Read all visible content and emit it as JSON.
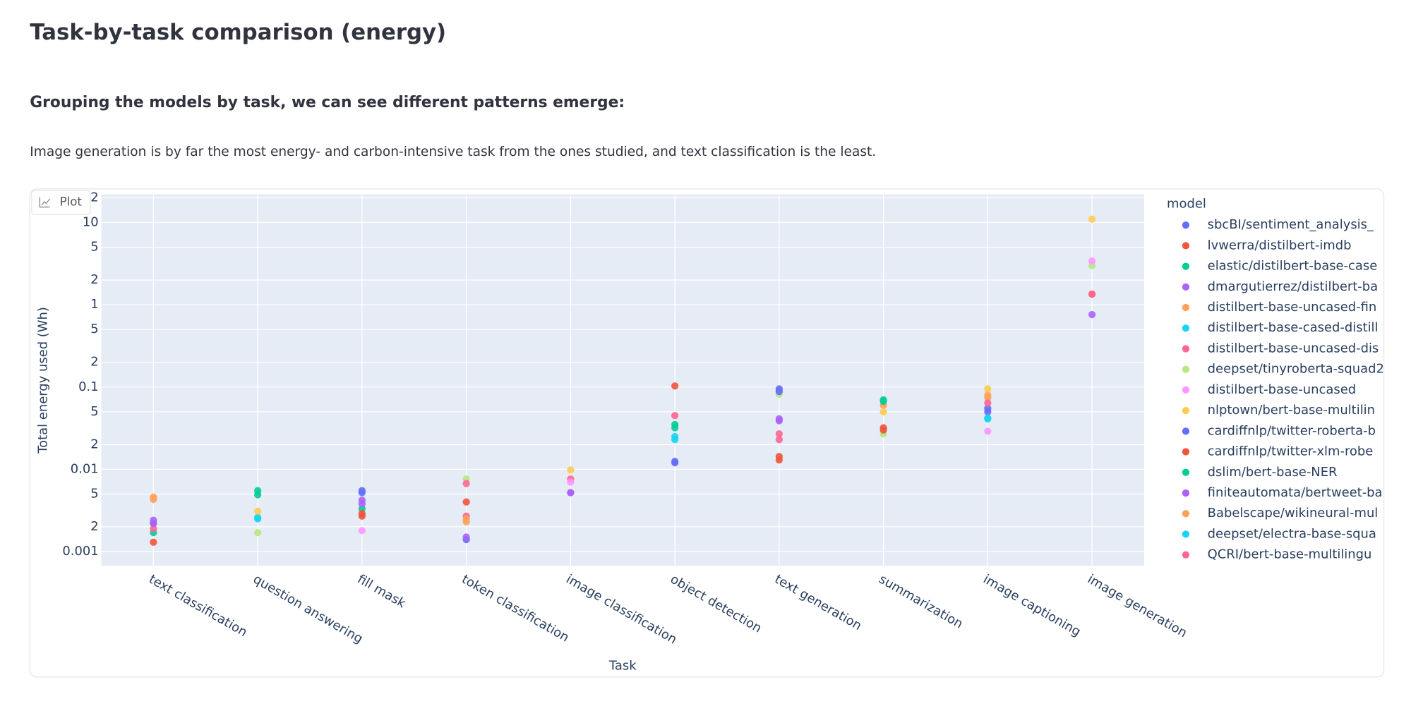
{
  "page": {
    "title": "Task-by-task comparison (energy)",
    "subtitle": "Grouping the models by task, we can see different patterns emerge:",
    "paragraph": "Image generation is by far the most energy- and carbon-intensive task from the ones studied, and text classification is the least.",
    "toolbar_button": "Plot"
  },
  "chart_data": {
    "type": "scatter",
    "log_y": true,
    "grid": true,
    "xlabel": "Task",
    "ylabel": "Total energy used (Wh)",
    "legend_title": "model",
    "legend": "right",
    "categories": [
      "text classification",
      "question answering",
      "fill mask",
      "token classification",
      "image classification",
      "object detection",
      "text generation",
      "summarization",
      "image captioning",
      "image generation"
    ],
    "ylim": [
      0.00067,
      22
    ],
    "yticks": [
      0.001,
      {
        "value": 0.002,
        "label": "2"
      },
      {
        "value": 0.005,
        "label": "5"
      },
      0.01,
      {
        "value": 0.02,
        "label": "2"
      },
      {
        "value": 0.05,
        "label": "5"
      },
      0.1,
      {
        "value": 0.2,
        "label": "2"
      },
      {
        "value": 0.5,
        "label": "5"
      },
      1,
      {
        "value": 2,
        "label": "2"
      },
      {
        "value": 5,
        "label": "5"
      },
      10,
      {
        "value": 20,
        "label": "2"
      }
    ],
    "series": [
      {
        "name": "sbcBI/sentiment_analysis_",
        "color": "#636efa",
        "values": [
          0.0022,
          null,
          0.0055,
          0.0014,
          null,
          0.0125,
          0.095,
          null,
          0.05,
          null
        ]
      },
      {
        "name": "lvwerra/distilbert-imdb",
        "color": "#EF553B",
        "values": [
          0.0013,
          null,
          0.0027,
          null,
          null,
          0.103,
          0.0143,
          0.032,
          null,
          1.35
        ]
      },
      {
        "name": "elastic/distilbert-base-case",
        "color": "#00cc96",
        "values": [
          0.0017,
          0.0055,
          0.0033,
          null,
          null,
          0.032,
          null,
          0.07,
          null,
          null
        ]
      },
      {
        "name": "dmargutierrez/distilbert-ba",
        "color": "#ab63fa",
        "values": [
          0.0024,
          null,
          0.0042,
          0.0015,
          0.0052,
          null,
          0.039,
          null,
          null,
          0.76
        ]
      },
      {
        "name": "distilbert-base-uncased-fin",
        "color": "#FFA15A",
        "values": [
          0.0046,
          null,
          null,
          0.0023,
          null,
          null,
          null,
          0.06,
          0.08,
          null
        ]
      },
      {
        "name": "distilbert-base-cased-distill",
        "color": "#19d3f3",
        "values": [
          null,
          0.0026,
          null,
          null,
          null,
          0.025,
          null,
          null,
          0.042,
          null
        ]
      },
      {
        "name": "distilbert-base-uncased-dis",
        "color": "#FF6692",
        "values": [
          0.0019,
          null,
          null,
          0.0027,
          0.0076,
          0.045,
          0.027,
          null,
          null,
          1.35
        ]
      },
      {
        "name": "deepset/tinyroberta-squad2",
        "color": "#B6E880",
        "values": [
          null,
          0.0017,
          null,
          0.0076,
          null,
          null,
          0.082,
          0.027,
          null,
          3.0
        ]
      },
      {
        "name": "distilbert-base-uncased",
        "color": "#FF97FF",
        "values": [
          null,
          null,
          0.0018,
          null,
          0.007,
          null,
          null,
          null,
          0.029,
          3.4
        ]
      },
      {
        "name": "nlptown/bert-base-multilin",
        "color": "#FECB52",
        "values": [
          null,
          0.0031,
          null,
          null,
          0.0098,
          null,
          null,
          0.05,
          0.095,
          11.0
        ]
      },
      {
        "name": "cardiffnlp/twitter-roberta-b",
        "color": "#636efa",
        "values": [
          null,
          null,
          0.0052,
          null,
          null,
          0.012,
          0.088,
          null,
          0.055,
          null
        ]
      },
      {
        "name": "cardiffnlp/twitter-xlm-robe",
        "color": "#EF553B",
        "values": [
          null,
          null,
          0.0029,
          0.004,
          null,
          null,
          0.013,
          0.03,
          null,
          null
        ]
      },
      {
        "name": "dslim/bert-base-NER",
        "color": "#00cc96",
        "values": [
          null,
          0.0049,
          null,
          null,
          null,
          0.035,
          null,
          0.067,
          null,
          null
        ]
      },
      {
        "name": "finiteautomata/bertweet-ba",
        "color": "#ab63fa",
        "values": [
          0.0022,
          null,
          0.0038,
          null,
          0.0052,
          null,
          0.041,
          null,
          null,
          null
        ]
      },
      {
        "name": "Babelscape/wikineural-mul",
        "color": "#FFA15A",
        "values": [
          0.0043,
          null,
          null,
          0.0025,
          null,
          null,
          null,
          null,
          0.074,
          null
        ]
      },
      {
        "name": "deepset/electra-base-squa",
        "color": "#19d3f3",
        "values": [
          null,
          0.0025,
          null,
          null,
          null,
          0.023,
          null,
          null,
          0.041,
          null
        ]
      },
      {
        "name": "QCRI/bert-base-multilingu",
        "color": "#FF6692",
        "values": [
          null,
          null,
          null,
          0.0067,
          null,
          null,
          0.023,
          null,
          0.064,
          null
        ]
      }
    ]
  }
}
